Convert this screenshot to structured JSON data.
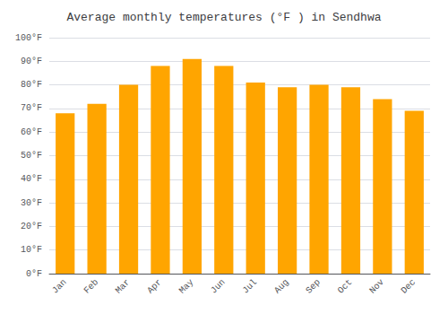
{
  "chart_data": {
    "type": "bar",
    "title": "Average monthly temperatures (°F ) in Sendhwa",
    "categories": [
      "Jan",
      "Feb",
      "Mar",
      "Apr",
      "May",
      "Jun",
      "Jul",
      "Aug",
      "Sep",
      "Oct",
      "Nov",
      "Dec"
    ],
    "values": [
      68,
      72,
      80,
      88,
      91,
      88,
      81,
      79,
      80,
      79,
      74,
      69
    ],
    "color": "#FFA500",
    "ylim": [
      0,
      100
    ],
    "yticks": [
      {
        "value": 0,
        "label": "0°F"
      },
      {
        "value": 10,
        "label": "10°F"
      },
      {
        "value": 20,
        "label": "20°F"
      },
      {
        "value": 30,
        "label": "30°F"
      },
      {
        "value": 40,
        "label": "40°F"
      },
      {
        "value": 50,
        "label": "50°F"
      },
      {
        "value": 60,
        "label": "60°F"
      },
      {
        "value": 70,
        "label": "70°F"
      },
      {
        "value": 80,
        "label": "80°F"
      },
      {
        "value": 90,
        "label": "90°F"
      },
      {
        "value": 100,
        "label": "100°F"
      }
    ],
    "grid": true
  }
}
